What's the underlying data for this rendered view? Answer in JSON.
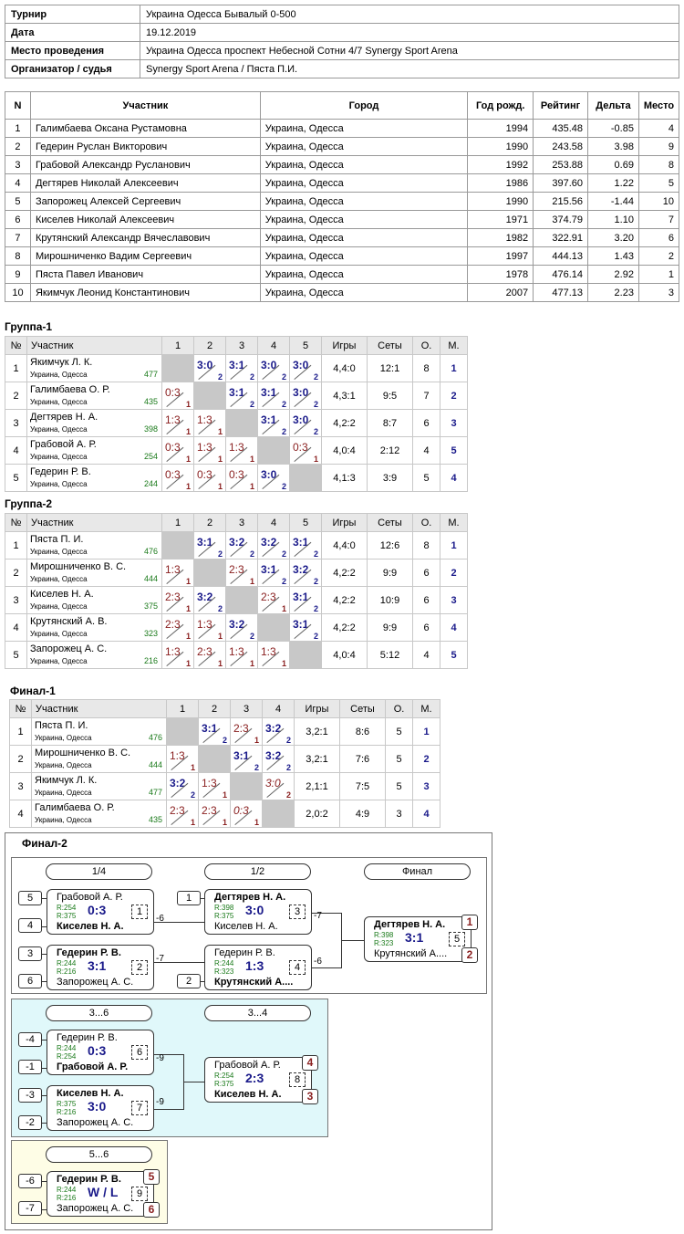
{
  "info": {
    "tournament_label": "Турнир",
    "tournament": "Украина Одесса Бывалый 0-500",
    "date_label": "Дата",
    "date": "19.12.2019",
    "place_label": "Место проведения",
    "place": "Украина Одесса проспект Небесной Сотни 4/7 Synergy Sport Arena",
    "org_label": "Организатор / судья",
    "org": "Synergy Sport Arena / Пяста П.И."
  },
  "players": {
    "headers": [
      "N",
      "Участник",
      "Город",
      "Год рожд.",
      "Рейтинг",
      "Дельта",
      "Место"
    ],
    "rows": [
      [
        "1",
        "Галимбаева Оксана Рустамовна",
        "Украина, Одесса",
        "1994",
        "435.48",
        "-0.85",
        "4"
      ],
      [
        "2",
        "Гедерин Руслан Викторович",
        "Украина, Одесса",
        "1990",
        "243.58",
        "3.98",
        "9"
      ],
      [
        "3",
        "Грабовой Александр Русланович",
        "Украина, Одесса",
        "1992",
        "253.88",
        "0.69",
        "8"
      ],
      [
        "4",
        "Дегтярев Николай Алексеевич",
        "Украина, Одесса",
        "1986",
        "397.60",
        "1.22",
        "5"
      ],
      [
        "5",
        "Запорожец Алексей Сергеевич",
        "Украина, Одесса",
        "1990",
        "215.56",
        "-1.44",
        "10"
      ],
      [
        "6",
        "Киселев Николай Алексеевич",
        "Украина, Одесса",
        "1971",
        "374.79",
        "1.10",
        "7"
      ],
      [
        "7",
        "Крутянский Александр Вячеславович",
        "Украина, Одесса",
        "1982",
        "322.91",
        "3.20",
        "6"
      ],
      [
        "8",
        "Мирошниченко Вадим Сергеевич",
        "Украина, Одесса",
        "1997",
        "444.13",
        "1.43",
        "2"
      ],
      [
        "9",
        "Пяста Павел Иванович",
        "Украина, Одесса",
        "1978",
        "476.14",
        "2.92",
        "1"
      ],
      [
        "10",
        "Якимчук Леонид Константинович",
        "Украина, Одесса",
        "2007",
        "477.13",
        "2.23",
        "3"
      ]
    ]
  },
  "groups": [
    {
      "title": "Группа-1",
      "headers": [
        "№",
        "Участник",
        "1",
        "2",
        "3",
        "4",
        "5",
        "Игры",
        "Сеты",
        "О.",
        "М."
      ],
      "rows": [
        {
          "n": "1",
          "name": "Якимчук Л. К.",
          "city": "Украина, Одесса",
          "rating": "477",
          "cells": [
            null,
            [
              "3:0",
              "2",
              "w"
            ],
            [
              "3:1",
              "2",
              "w"
            ],
            [
              "3:0",
              "2",
              "w"
            ],
            [
              "3:0",
              "2",
              "w"
            ]
          ],
          "games": "4,4:0",
          "sets": "12:1",
          "pts": "8",
          "place": "1"
        },
        {
          "n": "2",
          "name": "Галимбаева О. Р.",
          "city": "Украина, Одесса",
          "rating": "435",
          "cells": [
            [
              "0:3",
              "1",
              "l"
            ],
            null,
            [
              "3:1",
              "2",
              "w"
            ],
            [
              "3:1",
              "2",
              "w"
            ],
            [
              "3:0",
              "2",
              "w"
            ]
          ],
          "games": "4,3:1",
          "sets": "9:5",
          "pts": "7",
          "place": "2"
        },
        {
          "n": "3",
          "name": "Дегтярев Н. А.",
          "city": "Украина, Одесса",
          "rating": "398",
          "cells": [
            [
              "1:3",
              "1",
              "l"
            ],
            [
              "1:3",
              "1",
              "l"
            ],
            null,
            [
              "3:1",
              "2",
              "w"
            ],
            [
              "3:0",
              "2",
              "w"
            ]
          ],
          "games": "4,2:2",
          "sets": "8:7",
          "pts": "6",
          "place": "3"
        },
        {
          "n": "4",
          "name": "Грабовой А. Р.",
          "city": "Украина, Одесса",
          "rating": "254",
          "cells": [
            [
              "0:3",
              "1",
              "l"
            ],
            [
              "1:3",
              "1",
              "l"
            ],
            [
              "1:3",
              "1",
              "l"
            ],
            null,
            [
              "0:3",
              "1",
              "l"
            ]
          ],
          "games": "4,0:4",
          "sets": "2:12",
          "pts": "4",
          "place": "5"
        },
        {
          "n": "5",
          "name": "Гедерин Р. В.",
          "city": "Украина, Одесса",
          "rating": "244",
          "cells": [
            [
              "0:3",
              "1",
              "l"
            ],
            [
              "0:3",
              "1",
              "l"
            ],
            [
              "0:3",
              "1",
              "l"
            ],
            [
              "3:0",
              "2",
              "w"
            ],
            null
          ],
          "games": "4,1:3",
          "sets": "3:9",
          "pts": "5",
          "place": "4"
        }
      ]
    },
    {
      "title": "Группа-2",
      "headers": [
        "№",
        "Участник",
        "1",
        "2",
        "3",
        "4",
        "5",
        "Игры",
        "Сеты",
        "О.",
        "М."
      ],
      "rows": [
        {
          "n": "1",
          "name": "Пяста П. И.",
          "city": "Украина, Одесса",
          "rating": "476",
          "cells": [
            null,
            [
              "3:1",
              "2",
              "w"
            ],
            [
              "3:2",
              "2",
              "w"
            ],
            [
              "3:2",
              "2",
              "w"
            ],
            [
              "3:1",
              "2",
              "w"
            ]
          ],
          "games": "4,4:0",
          "sets": "12:6",
          "pts": "8",
          "place": "1"
        },
        {
          "n": "2",
          "name": "Мирошниченко В. С.",
          "city": "Украина, Одесса",
          "rating": "444",
          "cells": [
            [
              "1:3",
              "1",
              "l"
            ],
            null,
            [
              "2:3",
              "1",
              "l"
            ],
            [
              "3:1",
              "2",
              "w"
            ],
            [
              "3:2",
              "2",
              "w"
            ]
          ],
          "games": "4,2:2",
          "sets": "9:9",
          "pts": "6",
          "place": "2"
        },
        {
          "n": "3",
          "name": "Киселев Н. А.",
          "city": "Украина, Одесса",
          "rating": "375",
          "cells": [
            [
              "2:3",
              "1",
              "l"
            ],
            [
              "3:2",
              "2",
              "w"
            ],
            null,
            [
              "2:3",
              "1",
              "l"
            ],
            [
              "3:1",
              "2",
              "w"
            ]
          ],
          "games": "4,2:2",
          "sets": "10:9",
          "pts": "6",
          "place": "3"
        },
        {
          "n": "4",
          "name": "Крутянский А. В.",
          "city": "Украина, Одесса",
          "rating": "323",
          "cells": [
            [
              "2:3",
              "1",
              "l"
            ],
            [
              "1:3",
              "1",
              "l"
            ],
            [
              "3:2",
              "2",
              "w"
            ],
            null,
            [
              "3:1",
              "2",
              "w"
            ]
          ],
          "games": "4,2:2",
          "sets": "9:9",
          "pts": "6",
          "place": "4"
        },
        {
          "n": "5",
          "name": "Запорожец А. С.",
          "city": "Украина, Одесса",
          "rating": "216",
          "cells": [
            [
              "1:3",
              "1",
              "l"
            ],
            [
              "2:3",
              "1",
              "l"
            ],
            [
              "1:3",
              "1",
              "l"
            ],
            [
              "1:3",
              "1",
              "l"
            ],
            null
          ],
          "games": "4,0:4",
          "sets": "5:12",
          "pts": "4",
          "place": "5"
        }
      ]
    },
    {
      "title": "Финал-1",
      "headers": [
        "№",
        "Участник",
        "1",
        "2",
        "3",
        "4",
        "Игры",
        "Сеты",
        "О.",
        "М."
      ],
      "rows": [
        {
          "n": "1",
          "name": "Пяста П. И.",
          "city": "Украина, Одесса",
          "rating": "476",
          "cells": [
            null,
            [
              "3:1",
              "2",
              "w"
            ],
            [
              "2:3",
              "1",
              "l"
            ],
            [
              "3:2",
              "2",
              "w"
            ]
          ],
          "games": "3,2:1",
          "sets": "8:6",
          "pts": "5",
          "place": "1"
        },
        {
          "n": "2",
          "name": "Мирошниченко В. С.",
          "city": "Украина, Одесса",
          "rating": "444",
          "cells": [
            [
              "1:3",
              "1",
              "l"
            ],
            null,
            [
              "3:1",
              "2",
              "w"
            ],
            [
              "3:2",
              "2",
              "w"
            ]
          ],
          "games": "3,2:1",
          "sets": "7:6",
          "pts": "5",
          "place": "2"
        },
        {
          "n": "3",
          "name": "Якимчук Л. К.",
          "city": "Украина, Одесса",
          "rating": "477",
          "cells": [
            [
              "3:2",
              "2",
              "w"
            ],
            [
              "1:3",
              "1",
              "l"
            ],
            null,
            [
              "3:0",
              "2",
              "i"
            ]
          ],
          "games": "2,1:1",
          "sets": "7:5",
          "pts": "5",
          "place": "3"
        },
        {
          "n": "4",
          "name": "Галимбаева О. Р.",
          "city": "Украина, Одесса",
          "rating": "435",
          "cells": [
            [
              "2:3",
              "1",
              "l"
            ],
            [
              "2:3",
              "1",
              "l"
            ],
            [
              "0:3",
              "1",
              "i"
            ],
            null
          ],
          "games": "2,0:2",
          "sets": "4:9",
          "pts": "3",
          "place": "4"
        }
      ]
    }
  ],
  "final2": {
    "title": "Финал-2",
    "labels": {
      "r14": "1/4",
      "r12": "1/2",
      "fin": "Финал",
      "r36": "3...6",
      "r34": "3...4",
      "r56": "5...6"
    },
    "seeds": [
      "5",
      "4",
      "3",
      "6",
      "1",
      "2",
      "-4",
      "-1",
      "-3",
      "-2",
      "-6",
      "-7"
    ],
    "refs": [
      "-6",
      "-7",
      "-7",
      "-6",
      "-9",
      "-9"
    ],
    "matches": [
      {
        "p1": "Грабовой А. Р.",
        "p2": "Киселев Н. А.",
        "r1": "R:254",
        "r2": "R:375",
        "score": "0:3",
        "no": "1",
        "win": 2
      },
      {
        "p1": "Гедерин Р. В.",
        "p2": "Запорожец А. С.",
        "r1": "R:244",
        "r2": "R:216",
        "score": "3:1",
        "no": "2",
        "win": 1
      },
      {
        "p1": "Дегтярев Н. А.",
        "p2": "Киселев Н. А.",
        "r1": "R:398",
        "r2": "R:375",
        "score": "3:0",
        "no": "3",
        "win": 1
      },
      {
        "p1": "Гедерин Р. В.",
        "p2": "Крутянский А....",
        "r1": "R:244",
        "r2": "R:323",
        "score": "1:3",
        "no": "4",
        "win": 2
      },
      {
        "p1": "Дегтярев Н. А.",
        "p2": "Крутянский А....",
        "r1": "R:398",
        "r2": "R:323",
        "score": "3:1",
        "no": "5",
        "win": 1
      },
      {
        "p1": "Гедерин Р. В.",
        "p2": "Грабовой А. Р.",
        "r1": "R:244",
        "r2": "R:254",
        "score": "0:3",
        "no": "6",
        "win": 2
      },
      {
        "p1": "Киселев Н. А.",
        "p2": "Запорожец А. С.",
        "r1": "R:375",
        "r2": "R:216",
        "score": "3:0",
        "no": "7",
        "win": 1
      },
      {
        "p1": "Грабовой А. Р.",
        "p2": "Киселев Н. А.",
        "r1": "R:254",
        "r2": "R:375",
        "score": "2:3",
        "no": "8",
        "win": 2
      },
      {
        "p1": "Гедерин Р. В.",
        "p2": "Запорожец А. С.",
        "r1": "R:244",
        "r2": "R:216",
        "score": "W / L",
        "no": "9",
        "win": 1
      }
    ],
    "places": [
      "1",
      "2",
      "4",
      "3",
      "5",
      "6"
    ],
    "colors": {
      "panel2_bg": "#e0f8fa",
      "panel3_bg": "#fefde6"
    }
  }
}
